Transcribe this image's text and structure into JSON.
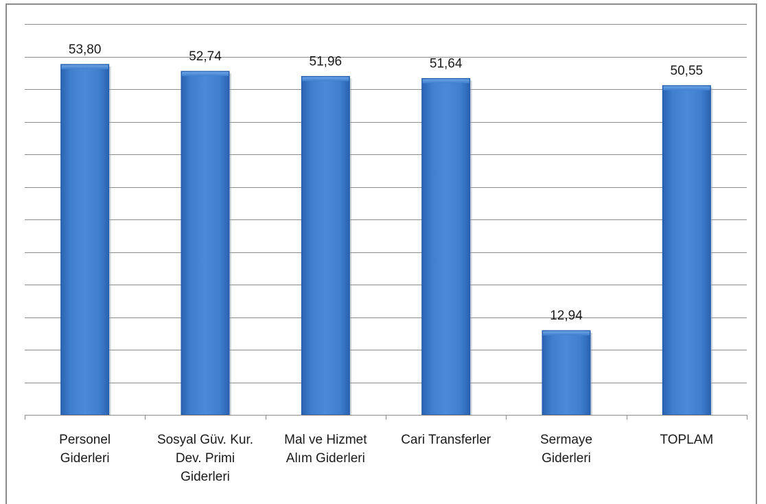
{
  "chart_data": {
    "type": "bar",
    "title": "",
    "xlabel": "",
    "ylabel": "",
    "ylim": [
      0,
      60
    ],
    "grid": true,
    "legend": "none",
    "categories": [
      [
        "Personel",
        "Giderleri"
      ],
      [
        "Sosyal Güv. Kur.",
        "Dev. Primi",
        "Giderleri"
      ],
      [
        "Mal ve Hizmet",
        "Alım Giderleri"
      ],
      [
        "Cari Transferler"
      ],
      [
        "Sermaye",
        "Giderleri"
      ],
      [
        "TOPLAM"
      ]
    ],
    "values": [
      53.8,
      52.74,
      51.96,
      51.64,
      12.94,
      50.55
    ],
    "value_labels": [
      "53,80",
      "52,74",
      "51,96",
      "51,64",
      "12,94",
      "50,55"
    ],
    "colors": {
      "bar": "#3f7fce",
      "bar_dark": "#1f5aa8",
      "grid": "#8a8a8a"
    }
  }
}
